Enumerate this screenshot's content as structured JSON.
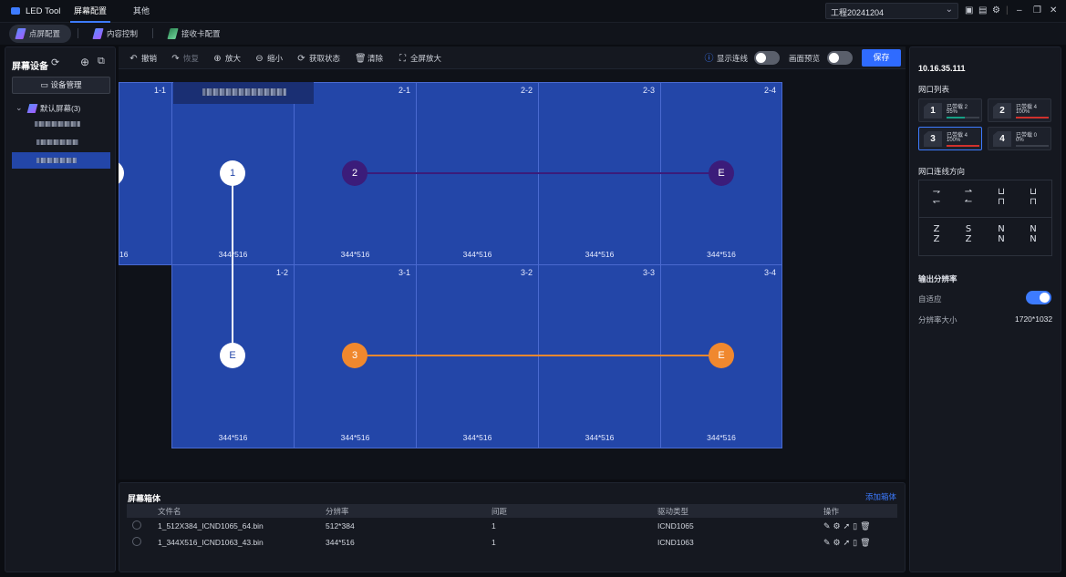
{
  "app": {
    "name": "LED Tool"
  },
  "titlebar": {
    "tabs": [
      {
        "label": "屏幕配置",
        "active": true
      },
      {
        "label": "其他",
        "active": false
      }
    ],
    "project": "工程20241204"
  },
  "subtabs": [
    {
      "label": "点屏配置",
      "active": true
    },
    {
      "label": "内容控制",
      "active": false
    },
    {
      "label": "接收卡配置",
      "active": false
    }
  ],
  "left": {
    "title": "屏幕设备",
    "device_button": "设备管理",
    "tree_root": "默认屏幕(3)"
  },
  "toolbar": {
    "undo": "撤销",
    "redo": "恢复",
    "zoom_in": "放大",
    "zoom_out": "缩小",
    "get_status": "获取状态",
    "clear": "清除",
    "fullscreen": "全屏放大",
    "show_lines": "显示连线",
    "preview": "画面预览",
    "save": "保存",
    "show_lines_on": false,
    "preview_on": false
  },
  "canvas": {
    "row1": [
      {
        "id": "1-1",
        "res": "16"
      },
      {
        "id": "",
        "res": "344*516"
      },
      {
        "id": "2-1",
        "res": "344*516"
      },
      {
        "id": "2-2",
        "res": "344*516"
      },
      {
        "id": "2-3",
        "res": "344*516"
      },
      {
        "id": "2-4",
        "res": "344*516"
      }
    ],
    "row2": [
      {
        "id": "1-2",
        "res": "344*516"
      },
      {
        "id": "3-1",
        "res": "344*516"
      },
      {
        "id": "3-2",
        "res": "344*516"
      },
      {
        "id": "3-3",
        "res": "344*516"
      },
      {
        "id": "3-4",
        "res": "344*516"
      }
    ],
    "nodes": [
      {
        "label": "1",
        "color": "#ffffff"
      },
      {
        "label": "2",
        "color": "#3b1c7a"
      },
      {
        "label": "E",
        "color": "#3b1c7a"
      },
      {
        "label": "E",
        "color": "#ffffff"
      },
      {
        "label": "3",
        "color": "#f0882e"
      },
      {
        "label": "E",
        "color": "#f0882e"
      }
    ]
  },
  "cabinets": {
    "title": "屏幕箱体",
    "add": "添加箱体",
    "columns": [
      "文件名",
      "分辨率",
      "间距",
      "驱动类型",
      "操作"
    ],
    "rows": [
      [
        "1_512X384_ICND1065_64.bin",
        "512*384",
        "1",
        "ICND1065"
      ],
      [
        "1_344X516_ICND1063_43.bin",
        "344*516",
        "1",
        "ICND1063"
      ]
    ]
  },
  "right": {
    "ip": "10.16.35.111",
    "ports_title": "网口列表",
    "ports": [
      {
        "num": "1",
        "text": "已带载 2",
        "pct": "55%",
        "fill": 0.55,
        "color": "#16a085"
      },
      {
        "num": "2",
        "text": "已带载 4",
        "pct": "100%",
        "fill": 1.0,
        "color": "#d0312d"
      },
      {
        "num": "3",
        "text": "已带载 4",
        "pct": "100%",
        "fill": 1.0,
        "color": "#d0312d"
      },
      {
        "num": "4",
        "text": "已带载 0",
        "pct": "0%",
        "fill": 0.0,
        "color": "#d0312d"
      }
    ],
    "direction_title": "网口连线方向",
    "output_title": "输出分辨率",
    "adaptive": "自适应",
    "adaptive_on": true,
    "resolution_label": "分辨率大小",
    "resolution_value": "1720*1032"
  }
}
